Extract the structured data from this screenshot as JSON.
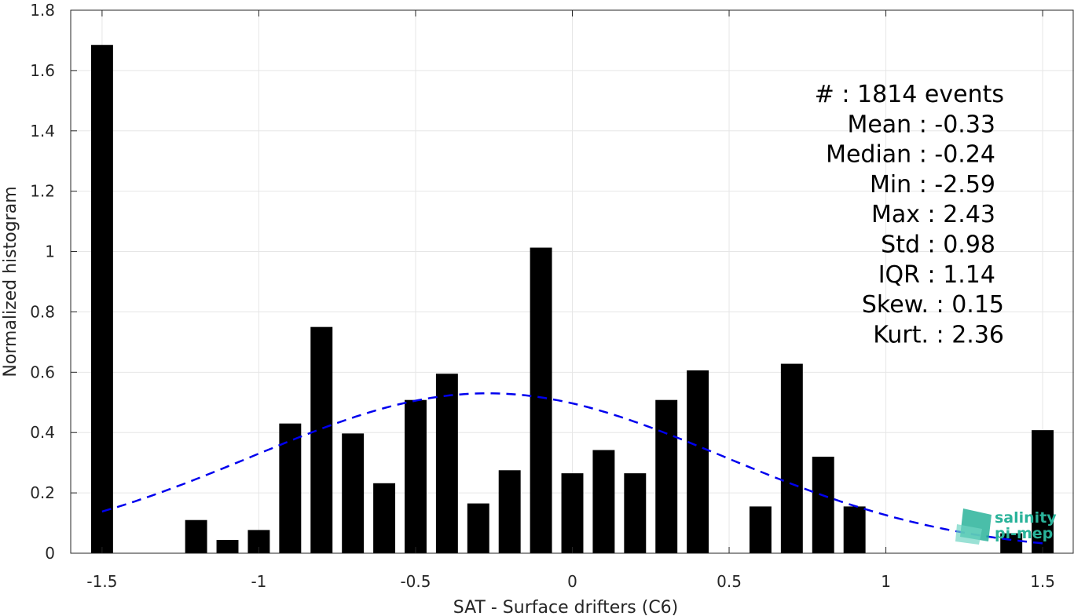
{
  "chart_data": {
    "type": "bar",
    "xlabel": "SAT - Surface drifters (C6)",
    "ylabel": "Normalized histogram",
    "xlim": [
      -1.6,
      1.6
    ],
    "ylim": [
      0,
      1.8
    ],
    "xticks": [
      -1.5,
      -1,
      -0.5,
      0,
      0.5,
      1,
      1.5
    ],
    "xtick_labels": [
      "-1.5",
      "-1",
      "-0.5",
      "0",
      "0.5",
      "1",
      "1.5"
    ],
    "yticks": [
      0,
      0.2,
      0.4,
      0.6,
      0.8,
      1,
      1.2,
      1.4,
      1.6,
      1.8
    ],
    "ytick_labels": [
      "0",
      "0.2",
      "0.4",
      "0.6",
      "0.8",
      "1",
      "1.2",
      "1.4",
      "1.6",
      "1.8"
    ],
    "grid": true,
    "bar_color": "#000000",
    "bar_width": 0.07,
    "bars": [
      {
        "x": -1.5,
        "y": 1.685
      },
      {
        "x": -1.4,
        "y": 0
      },
      {
        "x": -1.3,
        "y": 0
      },
      {
        "x": -1.2,
        "y": 0.11
      },
      {
        "x": -1.1,
        "y": 0.044
      },
      {
        "x": -1.0,
        "y": 0.077
      },
      {
        "x": -0.9,
        "y": 0.43
      },
      {
        "x": -0.8,
        "y": 0.75
      },
      {
        "x": -0.7,
        "y": 0.397
      },
      {
        "x": -0.6,
        "y": 0.232
      },
      {
        "x": -0.5,
        "y": 0.508
      },
      {
        "x": -0.4,
        "y": 0.595
      },
      {
        "x": -0.3,
        "y": 0.165
      },
      {
        "x": -0.2,
        "y": 0.275
      },
      {
        "x": -0.1,
        "y": 1.013
      },
      {
        "x": 0.0,
        "y": 0.265
      },
      {
        "x": 0.1,
        "y": 0.342
      },
      {
        "x": 0.2,
        "y": 0.265
      },
      {
        "x": 0.3,
        "y": 0.508
      },
      {
        "x": 0.4,
        "y": 0.606
      },
      {
        "x": 0.5,
        "y": 0
      },
      {
        "x": 0.6,
        "y": 0.155
      },
      {
        "x": 0.7,
        "y": 0.628
      },
      {
        "x": 0.8,
        "y": 0.32
      },
      {
        "x": 0.9,
        "y": 0.155
      },
      {
        "x": 1.0,
        "y": 0
      },
      {
        "x": 1.1,
        "y": 0
      },
      {
        "x": 1.2,
        "y": 0
      },
      {
        "x": 1.3,
        "y": 0
      },
      {
        "x": 1.4,
        "y": 0.066
      },
      {
        "x": 1.5,
        "y": 0.408
      }
    ],
    "fit": {
      "type": "gaussian",
      "mean": -0.27,
      "std": 0.75,
      "color": "#0000ee",
      "style": "dashed",
      "x_range": [
        -1.5,
        1.5
      ]
    },
    "stats": [
      "#  : 1814 events",
      "Mean : -0.33",
      "Median : -0.24",
      "Min : -2.59",
      "Max : 2.43",
      "Std : 0.98",
      "IQR : 1.14",
      "Skew. : 0.15",
      "Kurt. : 2.36"
    ]
  },
  "logo": {
    "line1": "salinity",
    "line2": "pi-mep",
    "color": "#2ab39a"
  }
}
